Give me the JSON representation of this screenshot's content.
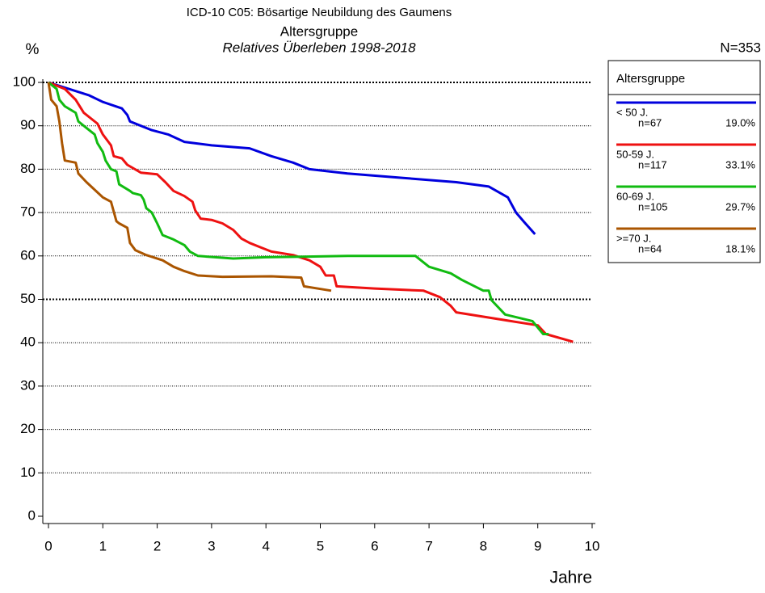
{
  "chart_data": {
    "type": "line",
    "title": "ICD-10 C05: Bösartige Neubildung des Gaumens",
    "subtitle": "Altersgruppe",
    "subtitle2": "Relatives Überleben 1998-2018",
    "n_total": "N=353",
    "y_label": "%",
    "x_label": "Jahre",
    "legend_title": "Altersgruppe",
    "xlim": [
      0,
      10
    ],
    "xticks": [
      0,
      1,
      2,
      3,
      4,
      5,
      6,
      7,
      8,
      9,
      10
    ],
    "ylim": [
      0,
      100
    ],
    "yticks": [
      0,
      10,
      20,
      30,
      40,
      50,
      60,
      70,
      80,
      90,
      100
    ],
    "grid": true,
    "major_grid": [
      50,
      100
    ],
    "series": [
      {
        "name": "< 50 J.",
        "n_label": "n=67",
        "share_label": "19.0%",
        "color": "#0000dd",
        "x": [
          0,
          0.75,
          1.0,
          1.35,
          1.45,
          1.5,
          1.9,
          2.2,
          2.5,
          3.0,
          3.7,
          4.1,
          4.5,
          4.8,
          5.5,
          6.5,
          7.5,
          8.1,
          8.45,
          8.6,
          8.75,
          8.95
        ],
        "values": [
          100,
          97,
          95.5,
          94,
          92.5,
          91,
          89,
          88,
          86.3,
          85.5,
          84.8,
          83,
          81.5,
          80,
          79,
          78,
          77,
          76,
          73.5,
          70,
          67.8,
          65
        ]
      },
      {
        "name": "50-59 J.",
        "n_label": "n=117",
        "share_label": "33.1%",
        "color": "#ee1111",
        "x": [
          0,
          0.3,
          0.5,
          0.65,
          0.9,
          1.0,
          1.15,
          1.2,
          1.35,
          1.45,
          1.7,
          2.0,
          2.15,
          2.3,
          2.5,
          2.65,
          2.7,
          2.8,
          3.0,
          3.2,
          3.4,
          3.55,
          3.7,
          3.9,
          4.1,
          4.5,
          4.8,
          5.0,
          5.1,
          5.25,
          5.3,
          6.0,
          6.9,
          7.2,
          7.4,
          7.5,
          8.0,
          8.5,
          9.0,
          9.15,
          9.65
        ],
        "values": [
          100,
          98.5,
          96,
          93,
          90.5,
          88,
          85.5,
          83,
          82.5,
          81,
          79.2,
          78.8,
          77,
          75,
          73.8,
          72.5,
          70.5,
          68.6,
          68.3,
          67.5,
          66,
          64,
          63,
          62,
          61,
          60.2,
          59,
          57.5,
          55.5,
          55.5,
          53,
          52.5,
          52,
          50.5,
          48.5,
          47,
          46,
          45,
          44,
          42,
          40.2
        ]
      },
      {
        "name": "60-69 J.",
        "n_label": "n=105",
        "share_label": "29.7%",
        "color": "#11bb11",
        "x": [
          0,
          0.15,
          0.2,
          0.3,
          0.5,
          0.55,
          0.7,
          0.85,
          0.9,
          1.0,
          1.05,
          1.15,
          1.25,
          1.3,
          1.5,
          1.55,
          1.7,
          1.75,
          1.8,
          1.9,
          2.0,
          2.1,
          2.3,
          2.5,
          2.6,
          2.75,
          3.4,
          4.0,
          5.5,
          6.75,
          7.0,
          7.4,
          7.6,
          8.0,
          8.1,
          8.15,
          8.4,
          8.9,
          9.0,
          9.1,
          9.2
        ],
        "values": [
          100,
          98.5,
          96,
          94.5,
          93,
          91,
          89.5,
          88,
          86,
          84,
          82,
          80,
          79.5,
          76.5,
          75,
          74.5,
          74,
          73,
          71,
          70,
          67.5,
          64.8,
          63.8,
          62.5,
          61,
          60,
          59.4,
          59.7,
          60,
          60,
          57.5,
          56,
          54.5,
          52,
          52,
          49.8,
          46.5,
          45,
          43.5,
          42,
          42
        ]
      },
      {
        "name": ">=70 J.",
        "n_label": "n=64",
        "share_label": "18.1%",
        "color": "#aa5500",
        "x": [
          0,
          0.05,
          0.15,
          0.2,
          0.25,
          0.3,
          0.5,
          0.55,
          0.7,
          1.0,
          1.15,
          1.25,
          1.3,
          1.45,
          1.5,
          1.6,
          1.8,
          2.1,
          2.3,
          2.5,
          2.75,
          3.2,
          4.1,
          4.65,
          4.7,
          5.2
        ],
        "values": [
          100,
          96,
          94.5,
          91,
          86,
          82,
          81.5,
          79,
          77,
          73.5,
          72.5,
          68,
          67.5,
          66.5,
          63,
          61.3,
          60.2,
          59,
          57.5,
          56.5,
          55.5,
          55.2,
          55.3,
          55,
          53,
          52
        ]
      }
    ]
  }
}
